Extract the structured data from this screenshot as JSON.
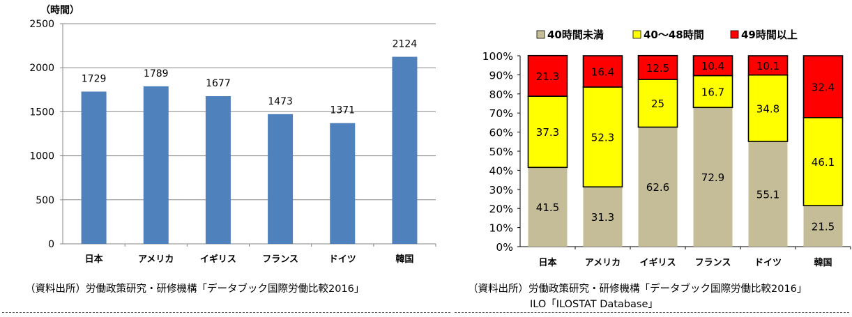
{
  "chart_data": [
    {
      "type": "bar",
      "unit_label": "（時間）",
      "categories": [
        "日本",
        "アメリカ",
        "イギリス",
        "フランス",
        "ドイツ",
        "韓国"
      ],
      "values": [
        1729,
        1789,
        1677,
        1473,
        1371,
        2124
      ],
      "ylim": [
        0,
        2500
      ],
      "yticks": [
        "0",
        "500",
        "1000",
        "1500",
        "2000",
        "2500"
      ],
      "grid": true,
      "bar_color": "#4F81BD",
      "source": "（資料出所）労働政策研究・研修機構「データブック国際労働比較2016」"
    },
    {
      "type": "bar",
      "stacked": true,
      "categories": [
        "日本",
        "アメリカ",
        "イギリス",
        "フランス",
        "ドイツ",
        "韓国"
      ],
      "series": [
        {
          "name": "40時間未満",
          "color": "#C4BD97",
          "values": [
            41.5,
            31.3,
            62.6,
            72.9,
            55.1,
            21.5
          ]
        },
        {
          "name": "40～48時間",
          "color": "#FFFF00",
          "values": [
            37.3,
            52.3,
            25,
            16.7,
            34.8,
            46.1
          ]
        },
        {
          "name": "49時間以上",
          "color": "#FF0000",
          "values": [
            21.3,
            16.4,
            12.5,
            10.4,
            10.1,
            32.4
          ]
        }
      ],
      "ylim": [
        0,
        100
      ],
      "yticks": [
        "0%",
        "10%",
        "20%",
        "30%",
        "40%",
        "50%",
        "60%",
        "70%",
        "80%",
        "90%",
        "100%"
      ],
      "legend_position": "top",
      "source": "（資料出所）労働政策研究・研修機構「データブック国際労働比較2016」",
      "source2": "ILO「ILOSTAT Database」"
    }
  ]
}
